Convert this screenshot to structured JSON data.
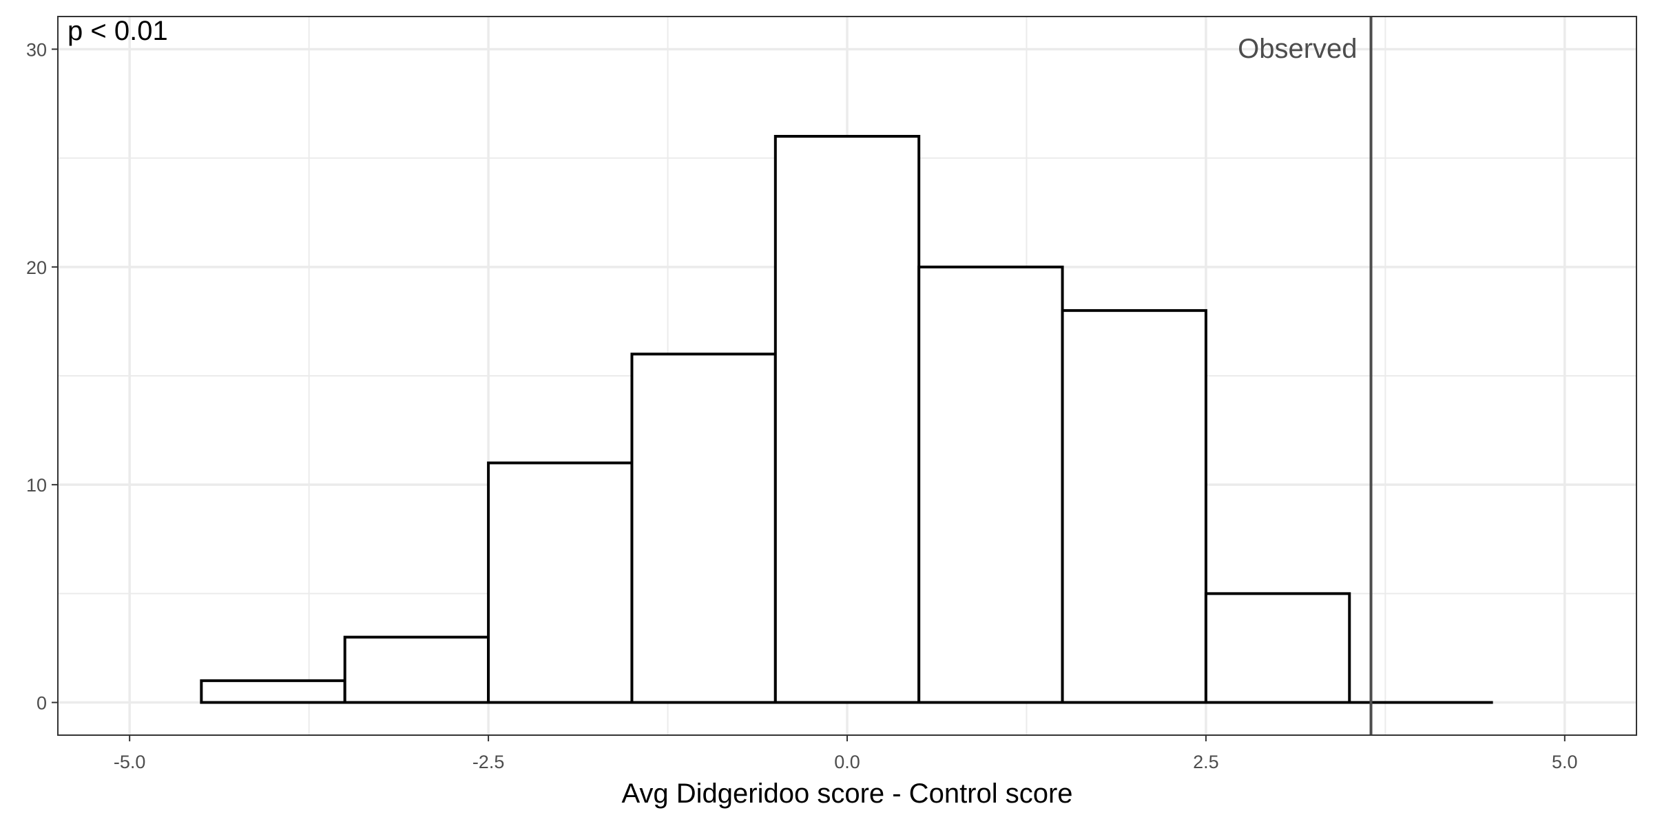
{
  "chart_data": {
    "type": "bar",
    "subtype": "histogram",
    "xlabel": "Avg Didgeridoo score - Control score",
    "ylabel": "",
    "xlim": [
      -5.5,
      5.5
    ],
    "ylim": [
      -1.5,
      31.5
    ],
    "x_ticks": [
      -5.0,
      -2.5,
      0.0,
      2.5,
      5.0
    ],
    "x_tick_labels": [
      "-5.0",
      "-2.5",
      "0.0",
      "2.5",
      "5.0"
    ],
    "y_ticks": [
      0,
      10,
      20,
      30
    ],
    "y_tick_labels": [
      "0",
      "10",
      "20",
      "30"
    ],
    "x_minor_ticks": [
      -3.75,
      -1.25,
      1.25,
      3.75
    ],
    "y_minor_ticks": [
      5,
      15,
      25
    ],
    "grid": true,
    "bins": [
      {
        "x0": -4.5,
        "x1": -3.5,
        "count": 1
      },
      {
        "x0": -3.5,
        "x1": -2.5,
        "count": 3
      },
      {
        "x0": -2.5,
        "x1": -1.5,
        "count": 11
      },
      {
        "x0": -1.5,
        "x1": -0.5,
        "count": 16
      },
      {
        "x0": -0.5,
        "x1": 0.5,
        "count": 26
      },
      {
        "x0": 0.5,
        "x1": 1.5,
        "count": 20
      },
      {
        "x0": 1.5,
        "x1": 2.5,
        "count": 18
      },
      {
        "x0": 2.5,
        "x1": 3.5,
        "count": 5
      },
      {
        "x0": 3.5,
        "x1": 4.5,
        "count": 0
      }
    ],
    "observed": {
      "x": 3.65,
      "label": "Observed",
      "color": "#4d4d4d"
    },
    "annotation": "p < 0.01",
    "colors": {
      "bar_fill": "#ffffff",
      "bar_stroke": "#000000",
      "grid": "#ebebeb",
      "panel_border": "#333333"
    }
  }
}
